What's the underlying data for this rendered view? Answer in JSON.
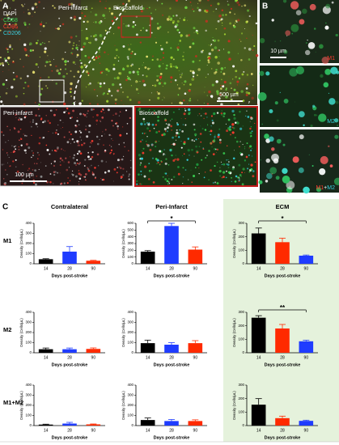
{
  "panel_a": {
    "label": "A",
    "stains": [
      {
        "name": "DAPI",
        "color": "#ffffff"
      },
      {
        "name": "CD68",
        "color": "#39d353"
      },
      {
        "name": "CD86",
        "color": "#ff3b2f"
      },
      {
        "name": "CD206",
        "color": "#35d0e0"
      }
    ],
    "regions": [
      "Peri-infarct",
      "Bioscaffold"
    ],
    "scale": "500 µm",
    "insets": [
      {
        "title": "Peri-infarct",
        "scale": "100 µm"
      },
      {
        "title": "Bioscaffold"
      }
    ]
  },
  "panel_b": {
    "label": "B",
    "scale": "10 µm",
    "labels": [
      "M1",
      "M2"
    ],
    "merge": [
      "M1",
      "+",
      "M2"
    ]
  },
  "panel_c": {
    "label": "C",
    "columns": [
      "Contralateral",
      "Peri-Infarct",
      "ECM"
    ],
    "rows": [
      "M1",
      "M2",
      "M1+M2"
    ]
  },
  "chart_data": [
    {
      "type": "bar",
      "y_label": "Density (Cells/µL)",
      "x_label": "Days post-stroke",
      "categories": [
        "14",
        "28",
        "90"
      ],
      "values": [
        45,
        120,
        30
      ],
      "errors": [
        5,
        50,
        4
      ],
      "colors": [
        "#000000",
        "#1f3cff",
        "#ff2a00"
      ],
      "ylim": [
        0,
        400
      ],
      "yticks": [
        0,
        100,
        200,
        300,
        400
      ]
    },
    {
      "type": "bar",
      "y_label": "Density (Cells/µL)",
      "x_label": "Days post-stroke",
      "categories": [
        "14",
        "28",
        "90"
      ],
      "values": [
        180,
        560,
        210
      ],
      "errors": [
        15,
        40,
        40
      ],
      "colors": [
        "#000000",
        "#1f3cff",
        "#ff2a00"
      ],
      "ylim": [
        0,
        600
      ],
      "yticks": [
        0,
        100,
        200,
        300,
        400,
        500,
        600
      ],
      "annotation": "*"
    },
    {
      "type": "bar",
      "y_label": "Density (Cells/µL)",
      "x_label": "Days post-stroke",
      "categories": [
        "14",
        "28",
        "90"
      ],
      "values": [
        225,
        160,
        60
      ],
      "errors": [
        40,
        30,
        5
      ],
      "colors": [
        "#000000",
        "#ff2a00",
        "#1f3cff"
      ],
      "ylim": [
        0,
        300
      ],
      "yticks": [
        0,
        100,
        200,
        300
      ],
      "annotation": "*"
    },
    {
      "type": "bar",
      "y_label": "Density (Cells/µL)",
      "x_label": "Days post-stroke",
      "categories": [
        "14",
        "28",
        "90"
      ],
      "values": [
        35,
        35,
        38
      ],
      "errors": [
        12,
        12,
        10
      ],
      "colors": [
        "#000000",
        "#1f3cff",
        "#ff2a00"
      ],
      "ylim": [
        0,
        400
      ],
      "yticks": [
        0,
        100,
        200,
        300,
        400
      ]
    },
    {
      "type": "bar",
      "y_label": "Density (Cells/µL)",
      "x_label": "Days post-stroke",
      "categories": [
        "14",
        "28",
        "90"
      ],
      "values": [
        95,
        80,
        95
      ],
      "errors": [
        30,
        20,
        25
      ],
      "colors": [
        "#000000",
        "#1f3cff",
        "#ff2a00"
      ],
      "ylim": [
        0,
        400
      ],
      "yticks": [
        0,
        100,
        200,
        300,
        400
      ]
    },
    {
      "type": "bar",
      "y_label": "Density (Cells/µL)",
      "x_label": "Days post-stroke",
      "categories": [
        "14",
        "28",
        "90"
      ],
      "values": [
        260,
        180,
        85
      ],
      "errors": [
        15,
        30,
        8
      ],
      "colors": [
        "#000000",
        "#ff2a00",
        "#1f3cff"
      ],
      "ylim": [
        0,
        300
      ],
      "yticks": [
        0,
        100,
        200,
        300
      ],
      "annotation": "**"
    },
    {
      "type": "bar",
      "y_label": "Density (Cells/µL)",
      "x_label": "Days post-stroke",
      "categories": [
        "14",
        "28",
        "90"
      ],
      "values": [
        10,
        20,
        12
      ],
      "errors": [
        4,
        12,
        4
      ],
      "colors": [
        "#000000",
        "#1f3cff",
        "#ff2a00"
      ],
      "ylim": [
        0,
        400
      ],
      "yticks": [
        0,
        100,
        200,
        300,
        400
      ]
    },
    {
      "type": "bar",
      "y_label": "Density (Cells/µL)",
      "x_label": "Days post-stroke",
      "categories": [
        "14",
        "28",
        "90"
      ],
      "values": [
        55,
        45,
        45
      ],
      "errors": [
        20,
        15,
        12
      ],
      "colors": [
        "#000000",
        "#1f3cff",
        "#ff2a00"
      ],
      "ylim": [
        0,
        400
      ],
      "yticks": [
        0,
        100,
        200,
        300,
        400
      ]
    },
    {
      "type": "bar",
      "y_label": "Density (Cells/µL)",
      "x_label": "Days post-stroke",
      "categories": [
        "14",
        "28",
        "90"
      ],
      "values": [
        155,
        55,
        35
      ],
      "errors": [
        45,
        15,
        5
      ],
      "colors": [
        "#000000",
        "#ff2a00",
        "#1f3cff"
      ],
      "ylim": [
        0,
        300
      ],
      "yticks": [
        0,
        100,
        200,
        300
      ]
    }
  ]
}
